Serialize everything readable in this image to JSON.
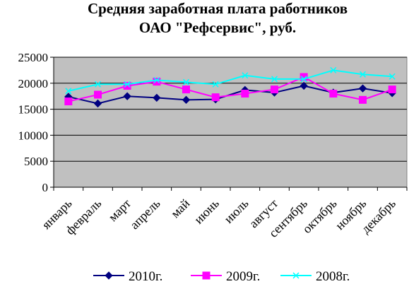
{
  "chart_data": {
    "type": "line",
    "title_line1": "Средняя заработная плата работников",
    "title_line2": "ОАО \"Рефсервис\", руб.",
    "categories": [
      "январь",
      "февраль",
      "март",
      "апрель",
      "май",
      "июнь",
      "июль",
      "август",
      "сентябрь",
      "октябрь",
      "ноябрь",
      "декабрь"
    ],
    "ylim": [
      0,
      25000
    ],
    "yticks": [
      0,
      5000,
      10000,
      15000,
      20000,
      25000
    ],
    "grid": true,
    "legend_position": "bottom",
    "plot_background": "#c0c0c0",
    "series": [
      {
        "name": "2010г.",
        "color": "#000080",
        "marker": "diamond",
        "values": [
          17400,
          16100,
          17500,
          17200,
          16800,
          16900,
          18700,
          18200,
          19500,
          18200,
          19000,
          18100
        ]
      },
      {
        "name": "2009г.",
        "color": "#ff00ff",
        "marker": "square",
        "values": [
          16500,
          17800,
          19500,
          20300,
          18800,
          17300,
          18000,
          18800,
          21200,
          18000,
          16800,
          18800
        ]
      },
      {
        "name": "2008г.",
        "color": "#00ffff",
        "marker": "x",
        "values": [
          18500,
          19800,
          19800,
          20600,
          20200,
          19800,
          21500,
          20800,
          20800,
          22500,
          21700,
          21300
        ]
      }
    ]
  }
}
